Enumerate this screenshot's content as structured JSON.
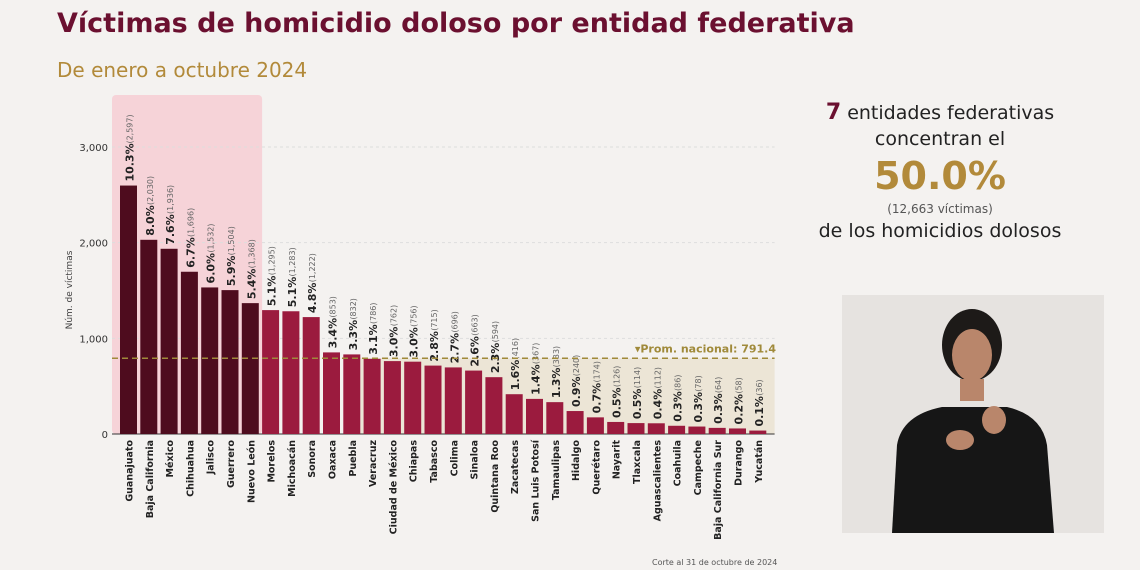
{
  "header": {
    "title": "Víctimas de homicidio doloso por entidad federativa",
    "subtitle": "De enero a octubre 2024"
  },
  "side": {
    "count": "7",
    "line1": "entidades federativas",
    "line2": "concentran el",
    "percent": "50.0%",
    "victims": "(12,663 víctimas)",
    "line3": "de los homicidios dolosos"
  },
  "footnote": "Corte al 31 de octubre de 2024",
  "colors": {
    "top7": "#4e0c1e",
    "rest": "#9b1b3e",
    "highlight": "#f6d3d8",
    "below_avg": "#ece5d6",
    "avg_line": "#a08a3a"
  },
  "chart_data": {
    "type": "bar",
    "ylabel": "Núm. de víctimas",
    "ylim": [
      0,
      3000
    ],
    "yticks": [
      "0",
      "1,000",
      "2,000",
      "3,000"
    ],
    "average": {
      "label": "▾Prom. nacional: 791.4",
      "value": 791.4
    },
    "categories": [
      "Guanajuato",
      "Baja California",
      "México",
      "Chihuahua",
      "Jalisco",
      "Guerrero",
      "Nuevo León",
      "Morelos",
      "Michoacán",
      "Sonora",
      "Oaxaca",
      "Puebla",
      "Veracruz",
      "Ciudad de México",
      "Chiapas",
      "Tabasco",
      "Colima",
      "Sinaloa",
      "Quintana Roo",
      "Zacatecas",
      "San Luis Potosí",
      "Tamaulipas",
      "Hidalgo",
      "Querétaro",
      "Nayarit",
      "Tlaxcala",
      "Aguascalientes",
      "Coahuila",
      "Campeche",
      "Baja California Sur",
      "Durango",
      "Yucatán"
    ],
    "values": [
      2597,
      2030,
      1936,
      1696,
      1532,
      1504,
      1368,
      1295,
      1283,
      1222,
      853,
      832,
      786,
      762,
      756,
      715,
      696,
      663,
      594,
      416,
      367,
      333,
      240,
      174,
      126,
      114,
      112,
      86,
      78,
      64,
      58,
      36
    ],
    "value_labels": [
      "(2,597)",
      "(2,030)",
      "(1,936)",
      "(1,696)",
      "(1,532)",
      "(1,504)",
      "(1,368)",
      "(1,295)",
      "(1,283)",
      "(1,222)",
      "(853)",
      "(832)",
      "(786)",
      "(762)",
      "(756)",
      "(715)",
      "(696)",
      "(663)",
      "(594)",
      "(416)",
      "(367)",
      "(333)",
      "(240)",
      "(174)",
      "(126)",
      "(114)",
      "(112)",
      "(86)",
      "(78)",
      "(64)",
      "(58)",
      "(36)"
    ],
    "percents": [
      "10.3%",
      "8.0%",
      "7.6%",
      "6.7%",
      "6.0%",
      "5.9%",
      "5.4%",
      "5.1%",
      "5.1%",
      "4.8%",
      "3.4%",
      "3.3%",
      "3.1%",
      "3.0%",
      "3.0%",
      "2.8%",
      "2.7%",
      "2.6%",
      "2.3%",
      "1.6%",
      "1.4%",
      "1.3%",
      "0.9%",
      "0.7%",
      "0.5%",
      "0.5%",
      "0.4%",
      "0.3%",
      "0.3%",
      "0.3%",
      "0.2%",
      "0.1%"
    ],
    "highlighted_count": 7
  }
}
